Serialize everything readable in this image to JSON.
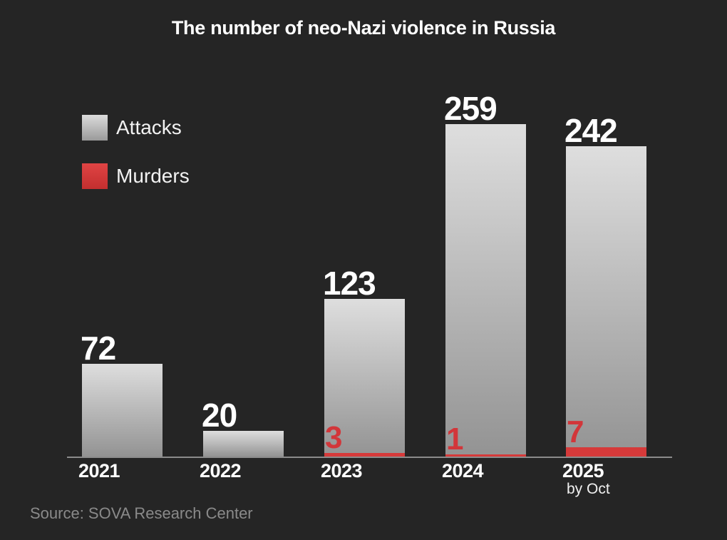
{
  "chart_data": {
    "type": "bar",
    "title": "The number of neo-Nazi violence in Russia",
    "categories": [
      "2021",
      "2022",
      "2023",
      "2024",
      "2025"
    ],
    "category_notes": [
      "",
      "",
      "",
      "",
      "by Oct"
    ],
    "series": [
      {
        "name": "Attacks",
        "color": "#c8c8c8",
        "values": [
          72,
          20,
          123,
          259,
          242
        ]
      },
      {
        "name": "Murders",
        "color": "#d63a3a",
        "values": [
          null,
          null,
          3,
          1,
          7
        ]
      }
    ],
    "value_labels": {
      "attacks": [
        "72",
        "20",
        "123",
        "259",
        "242"
      ],
      "murders": [
        "",
        "",
        "3",
        "1",
        "7"
      ]
    },
    "xlabel": "",
    "ylabel": "",
    "ylim": [
      0,
      260
    ],
    "grid": false,
    "legend_position": "upper-left",
    "source": "Source: SOVA Research Center"
  },
  "legend": {
    "attacks_label": "Attacks",
    "murders_label": "Murders"
  },
  "colors": {
    "background": "#252525",
    "attacks_top": "#dedede",
    "attacks_bottom": "#939393",
    "murders": "#d63a3a",
    "murder_text": "#d2363a",
    "source_text": "#8a8a8a"
  }
}
